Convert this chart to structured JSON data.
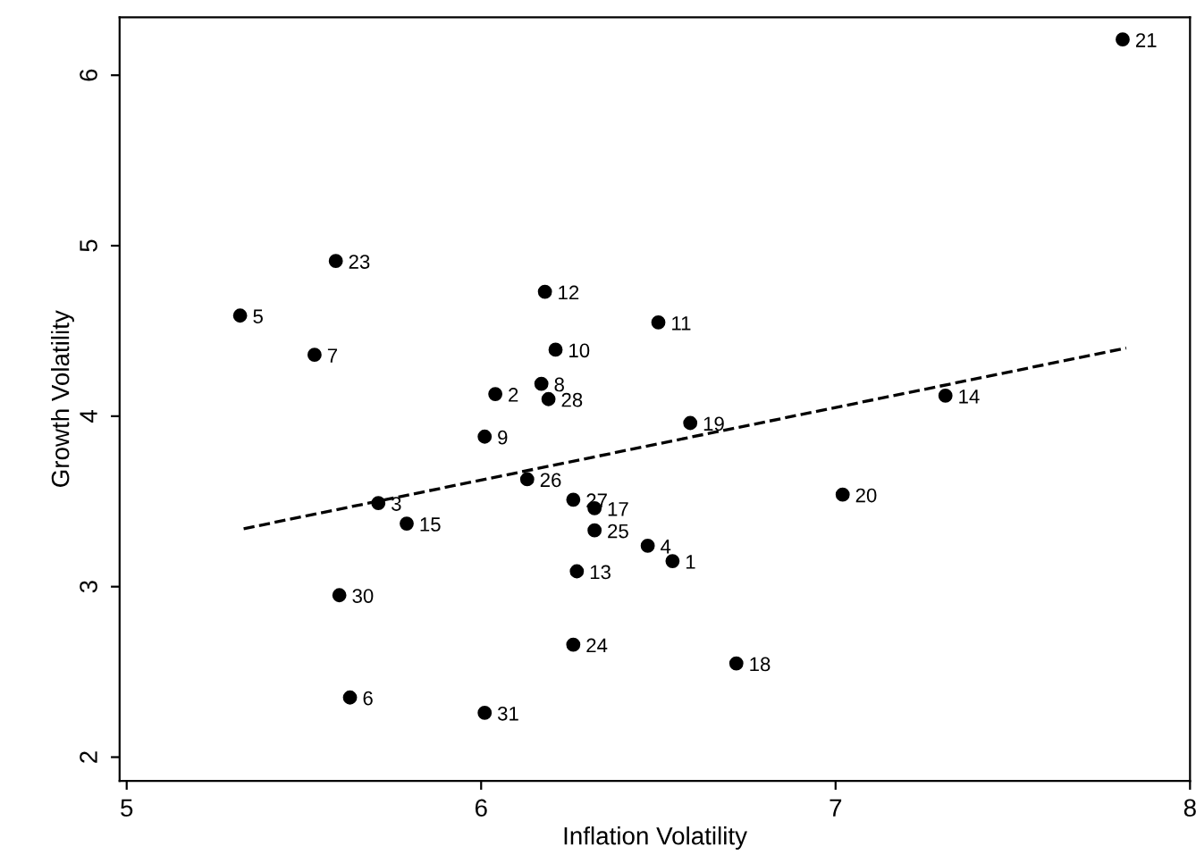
{
  "chart_data": {
    "type": "scatter",
    "xlabel": "Inflation Volatility",
    "ylabel": "Growth Volatility",
    "xlim": [
      4.98,
      8.0
    ],
    "ylim": [
      1.86,
      6.34
    ],
    "xticks": [
      5,
      6,
      7,
      8
    ],
    "yticks": [
      2,
      3,
      4,
      5,
      6
    ],
    "grid": false,
    "legend": false,
    "series": [
      {
        "marker": "circle",
        "color": "#000000",
        "x": [
          7.81,
          7.31,
          7.02,
          5.59,
          5.32,
          5.53,
          5.71,
          5.79,
          6.18,
          6.5,
          6.21,
          6.04,
          6.17,
          6.19,
          6.01,
          6.59,
          6.13,
          6.26,
          6.32,
          6.32,
          6.47,
          6.54,
          6.27,
          5.6,
          5.63,
          6.01,
          6.26,
          6.72
        ],
        "values": [
          6.21,
          4.12,
          3.54,
          4.91,
          4.59,
          4.36,
          3.49,
          3.37,
          4.73,
          4.55,
          4.39,
          4.13,
          4.19,
          4.1,
          3.88,
          3.96,
          3.63,
          3.51,
          3.46,
          3.33,
          3.24,
          3.15,
          3.09,
          2.95,
          2.35,
          2.26,
          2.66,
          2.55
        ]
      },
      {
        "type": "line",
        "marker": "none",
        "line_style": "dashed",
        "color": "#000000",
        "x": [
          5.33,
          7.82
        ],
        "values": [
          3.34,
          4.4
        ]
      }
    ],
    "annotations": [
      {
        "text": "21",
        "x": 7.81,
        "y": 6.21
      },
      {
        "text": "14",
        "x": 7.31,
        "y": 4.12
      },
      {
        "text": "20",
        "x": 7.02,
        "y": 3.54
      },
      {
        "text": "23",
        "x": 5.59,
        "y": 4.91
      },
      {
        "text": "5",
        "x": 5.32,
        "y": 4.59
      },
      {
        "text": "7",
        "x": 5.53,
        "y": 4.36
      },
      {
        "text": "3",
        "x": 5.71,
        "y": 3.49
      },
      {
        "text": "15",
        "x": 5.79,
        "y": 3.37
      },
      {
        "text": "12",
        "x": 6.18,
        "y": 4.73
      },
      {
        "text": "11",
        "x": 6.5,
        "y": 4.55
      },
      {
        "text": "10",
        "x": 6.21,
        "y": 4.39
      },
      {
        "text": "2",
        "x": 6.04,
        "y": 4.13
      },
      {
        "text": "8",
        "x": 6.17,
        "y": 4.19
      },
      {
        "text": "28",
        "x": 6.19,
        "y": 4.1
      },
      {
        "text": "9",
        "x": 6.01,
        "y": 3.88
      },
      {
        "text": "19",
        "x": 6.59,
        "y": 3.96
      },
      {
        "text": "26",
        "x": 6.13,
        "y": 3.63
      },
      {
        "text": "27",
        "x": 6.26,
        "y": 3.51
      },
      {
        "text": "17",
        "x": 6.32,
        "y": 3.46
      },
      {
        "text": "25",
        "x": 6.32,
        "y": 3.33
      },
      {
        "text": "4",
        "x": 6.47,
        "y": 3.24
      },
      {
        "text": "1",
        "x": 6.54,
        "y": 3.15
      },
      {
        "text": "13",
        "x": 6.27,
        "y": 3.09
      },
      {
        "text": "30",
        "x": 5.6,
        "y": 2.95
      },
      {
        "text": "6",
        "x": 5.63,
        "y": 2.35
      },
      {
        "text": "31",
        "x": 6.01,
        "y": 2.26
      },
      {
        "text": "24",
        "x": 6.26,
        "y": 2.66
      },
      {
        "text": "18",
        "x": 6.72,
        "y": 2.55
      }
    ]
  }
}
